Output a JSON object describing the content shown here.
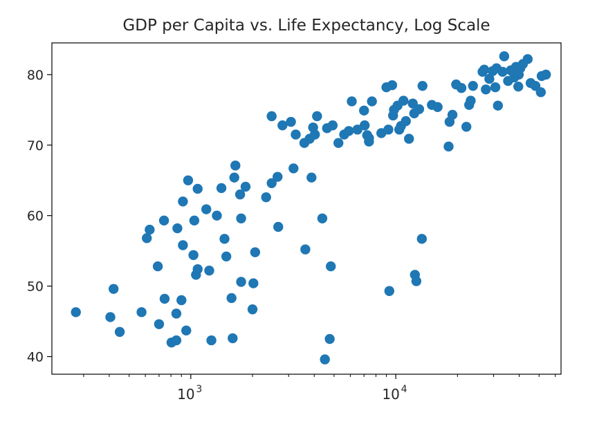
{
  "chart_data": {
    "type": "scatter",
    "title": "GDP per Capita vs. Life Expectancy, Log Scale",
    "xlabel": "",
    "ylabel": "",
    "x_scale": "log",
    "xlim": [
      210,
      64000
    ],
    "ylim": [
      37.5,
      84.5
    ],
    "x_ticks": [
      1000,
      10000
    ],
    "x_tick_labels": [
      {
        "base": "10",
        "exp": "3"
      },
      {
        "base": "10",
        "exp": "4"
      }
    ],
    "y_ticks": [
      40,
      50,
      60,
      70,
      80
    ],
    "y_tick_labels": [
      "40",
      "50",
      "60",
      "70",
      "80"
    ],
    "grid": false,
    "marker_color": "#1f77b4",
    "points": [
      [
        275,
        46.3
      ],
      [
        405,
        45.6
      ],
      [
        420,
        49.6
      ],
      [
        450,
        43.5
      ],
      [
        575,
        46.3
      ],
      [
        610,
        56.8
      ],
      [
        630,
        58
      ],
      [
        690,
        52.8
      ],
      [
        700,
        44.6
      ],
      [
        740,
        59.3
      ],
      [
        745,
        48.2
      ],
      [
        805,
        42
      ],
      [
        850,
        42.3
      ],
      [
        850,
        46.1
      ],
      [
        860,
        58.2
      ],
      [
        900,
        48
      ],
      [
        915,
        55.8
      ],
      [
        915,
        62
      ],
      [
        950,
        43.7
      ],
      [
        970,
        65
      ],
      [
        1030,
        54.4
      ],
      [
        1040,
        59.3
      ],
      [
        1060,
        51.6
      ],
      [
        1080,
        52.4
      ],
      [
        1080,
        63.8
      ],
      [
        1190,
        60.9
      ],
      [
        1230,
        52.2
      ],
      [
        1260,
        42.3
      ],
      [
        1340,
        60
      ],
      [
        1410,
        63.9
      ],
      [
        1460,
        56.7
      ],
      [
        1490,
        54.2
      ],
      [
        1580,
        48.3
      ],
      [
        1600,
        42.6
      ],
      [
        1630,
        65.4
      ],
      [
        1650,
        67.1
      ],
      [
        1740,
        63
      ],
      [
        1760,
        59.6
      ],
      [
        1760,
        50.6
      ],
      [
        1850,
        64.1
      ],
      [
        2000,
        46.7
      ],
      [
        2020,
        50.4
      ],
      [
        2060,
        54.8
      ],
      [
        2330,
        62.6
      ],
      [
        2480,
        64.6
      ],
      [
        2480,
        74.1
      ],
      [
        2650,
        65.5
      ],
      [
        2670,
        58.4
      ],
      [
        2800,
        72.8
      ],
      [
        3080,
        73.3
      ],
      [
        3170,
        66.7
      ],
      [
        3250,
        71.5
      ],
      [
        3580,
        70.3
      ],
      [
        3620,
        55.2
      ],
      [
        3800,
        70.9
      ],
      [
        3880,
        65.4
      ],
      [
        3950,
        72.5
      ],
      [
        4030,
        71.5
      ],
      [
        4130,
        74.1
      ],
      [
        4380,
        59.6
      ],
      [
        4510,
        39.6
      ],
      [
        4620,
        72.4
      ],
      [
        4760,
        42.5
      ],
      [
        4820,
        52.8
      ],
      [
        4920,
        72.8
      ],
      [
        5250,
        70.3
      ],
      [
        5600,
        71.5
      ],
      [
        5900,
        72
      ],
      [
        6100,
        76.2
      ],
      [
        6500,
        72.2
      ],
      [
        7000,
        74.9
      ],
      [
        7050,
        72.8
      ],
      [
        7250,
        71.4
      ],
      [
        7400,
        70.5
      ],
      [
        7400,
        71
      ],
      [
        7650,
        76.2
      ],
      [
        8500,
        71.7
      ],
      [
        9000,
        78.2
      ],
      [
        9200,
        72.2
      ],
      [
        9300,
        49.3
      ],
      [
        9600,
        78.5
      ],
      [
        9700,
        74.2
      ],
      [
        9800,
        75
      ],
      [
        10200,
        75.6
      ],
      [
        10400,
        72.2
      ],
      [
        10600,
        72.7
      ],
      [
        10900,
        76.3
      ],
      [
        11200,
        73.4
      ],
      [
        11600,
        70.9
      ],
      [
        12100,
        75.9
      ],
      [
        12300,
        74.5
      ],
      [
        12400,
        51.6
      ],
      [
        12600,
        50.7
      ],
      [
        13000,
        75.1
      ],
      [
        13400,
        56.7
      ],
      [
        13500,
        78.4
      ],
      [
        15000,
        75.7
      ],
      [
        16000,
        75.4
      ],
      [
        18100,
        69.8
      ],
      [
        18300,
        73.3
      ],
      [
        18900,
        74.3
      ],
      [
        19700,
        78.6
      ],
      [
        20900,
        78.1
      ],
      [
        22100,
        72.6
      ],
      [
        22800,
        75.7
      ],
      [
        23200,
        76.3
      ],
      [
        23800,
        78.4
      ],
      [
        26500,
        80.4
      ],
      [
        27000,
        80.7
      ],
      [
        27500,
        77.9
      ],
      [
        28600,
        79.4
      ],
      [
        29700,
        80.5
      ],
      [
        30600,
        78.2
      ],
      [
        31000,
        80.9
      ],
      [
        31500,
        75.6
      ],
      [
        33200,
        80.4
      ],
      [
        33800,
        82.6
      ],
      [
        35300,
        79.1
      ],
      [
        36400,
        80.6
      ],
      [
        37800,
        79.6
      ],
      [
        38600,
        81.1
      ],
      [
        39600,
        78.3
      ],
      [
        39800,
        80
      ],
      [
        40500,
        80.9
      ],
      [
        41700,
        81.5
      ],
      [
        44000,
        82.2
      ],
      [
        45500,
        78.8
      ],
      [
        48000,
        78.4
      ],
      [
        51000,
        77.5
      ],
      [
        51500,
        79.8
      ],
      [
        54000,
        80
      ]
    ]
  }
}
